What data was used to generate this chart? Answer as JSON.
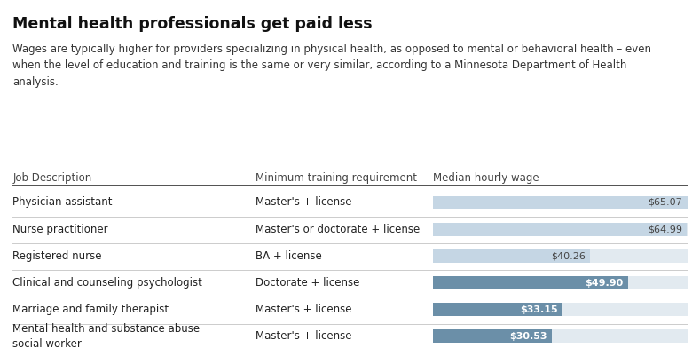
{
  "title": "Mental health professionals get paid less",
  "subtitle": "Wages are typically higher for providers specializing in physical health, as opposed to mental or behavioral health – even\nwhen the level of education and training is the same or very similar, according to a Minnesota Department of Health\nanalysis.",
  "col_headers": [
    "Job Description",
    "Minimum training requirement",
    "Median hourly wage"
  ],
  "rows": [
    {
      "job": "Physician assistant",
      "training": "Master's + license",
      "wage": 65.07,
      "mental_health": false
    },
    {
      "job": "Nurse practitioner",
      "training": "Master's or doctorate + license",
      "wage": 64.99,
      "mental_health": false
    },
    {
      "job": "Registered nurse",
      "training": "BA + license",
      "wage": 40.26,
      "mental_health": false
    },
    {
      "job": "Clinical and counseling psychologist",
      "training": "Doctorate + license",
      "wage": 49.9,
      "mental_health": true
    },
    {
      "job": "Marriage and family therapist",
      "training": "Master's + license",
      "wage": 33.15,
      "mental_health": true
    },
    {
      "job": "Mental health and substance abuse\nsocial worker",
      "training": "Master's + license",
      "wage": 30.53,
      "mental_health": true
    }
  ],
  "bar_max": 65.07,
  "physical_color": "#c5d6e4",
  "mental_color": "#6b8fa8",
  "bar_bg_color": "#e2eaf0",
  "background_color": "#ffffff",
  "title_fontsize": 12.5,
  "subtitle_fontsize": 8.5,
  "header_fontsize": 8.5,
  "row_fontsize": 8.5,
  "wage_label_fontsize": 8
}
